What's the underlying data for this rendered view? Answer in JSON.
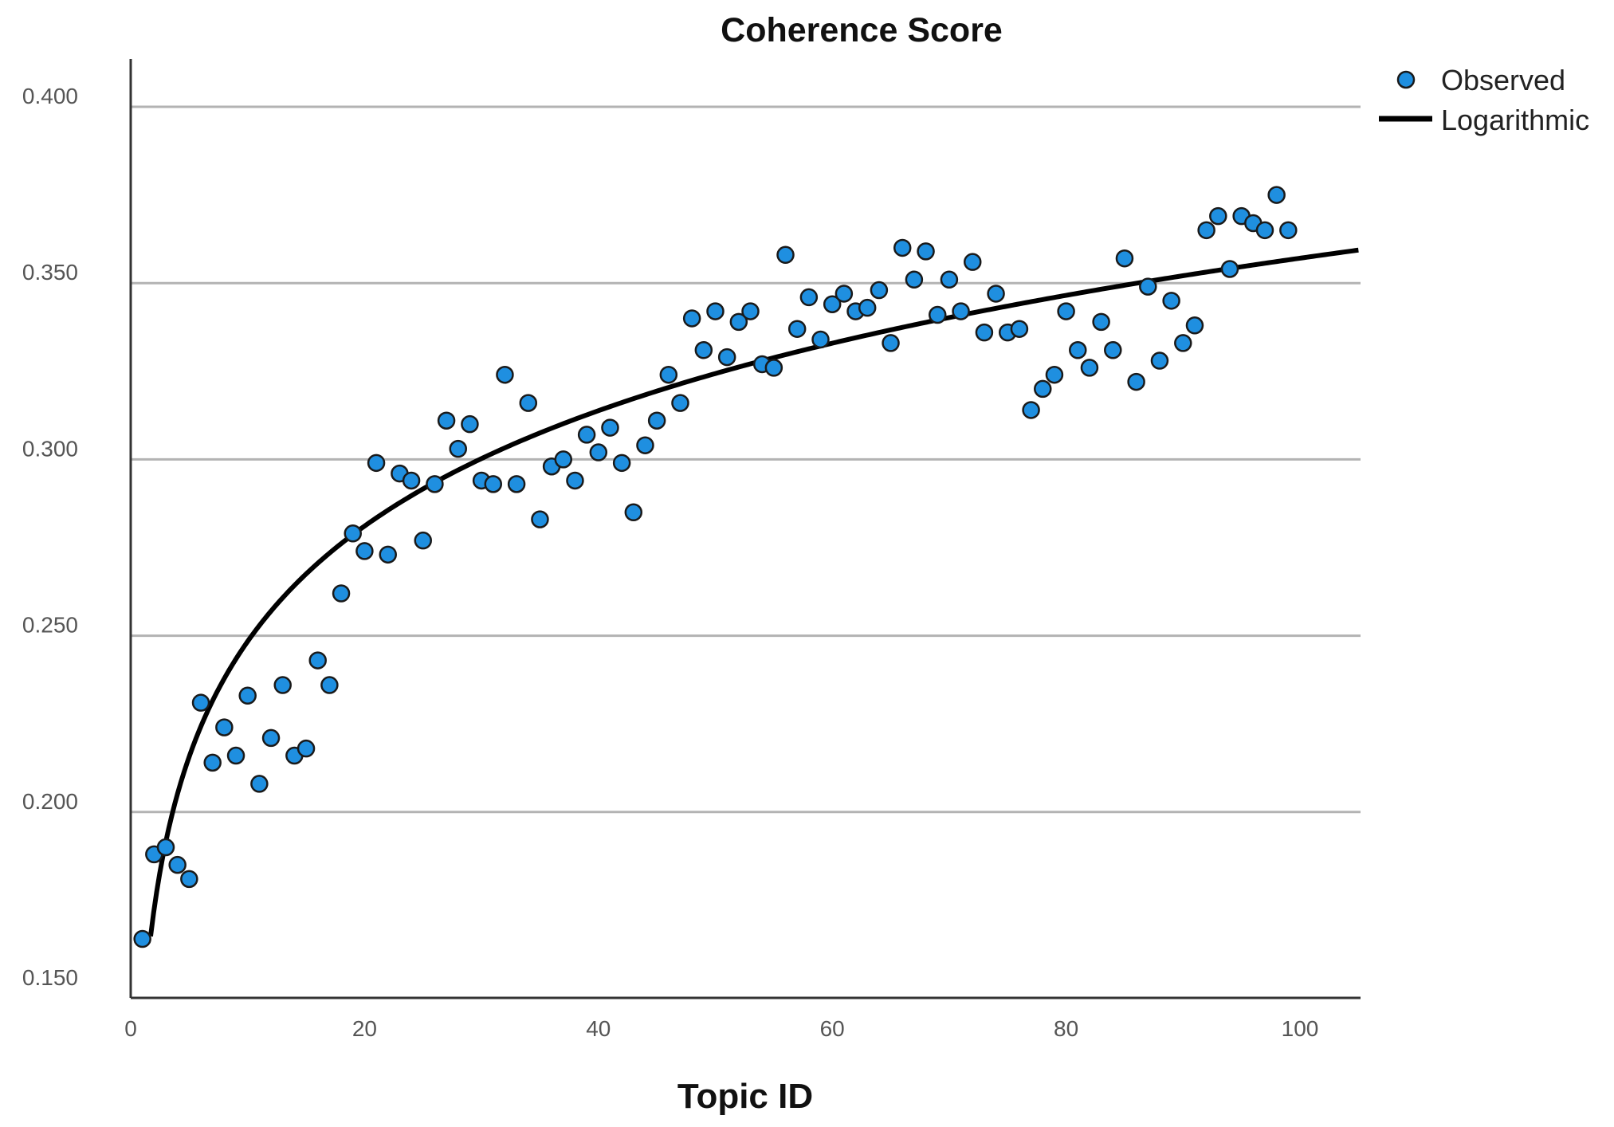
{
  "chart_data": {
    "type": "scatter",
    "title": "Coherence Score",
    "xlabel": "Topic ID",
    "ylabel": "",
    "xlim": [
      0,
      105
    ],
    "ylim": [
      0.15,
      0.405
    ],
    "x_ticks": [
      0,
      20,
      40,
      60,
      80,
      100
    ],
    "x_tick_labels": [
      "0",
      "20",
      "40",
      "60",
      "80",
      "100"
    ],
    "y_ticks": [
      0.15,
      0.2,
      0.25,
      0.3,
      0.35,
      0.4
    ],
    "y_tick_labels": [
      "0.150",
      "0.200",
      "0.250",
      "0.300",
      "0.350",
      "0.400"
    ],
    "grid": "horizontal",
    "legend_position": "top-right",
    "colors": {
      "observed_fill": "#1f8fe0",
      "observed_edge": "#1a1a1a",
      "fit_line": "#000000",
      "grid": "#b3b3b3"
    },
    "series": [
      {
        "name": "Observed",
        "kind": "scatter",
        "x": [
          1,
          2,
          3,
          4,
          5,
          6,
          7,
          8,
          9,
          10,
          11,
          12,
          13,
          14,
          15,
          16,
          17,
          18,
          19,
          20,
          21,
          22,
          23,
          24,
          25,
          26,
          27,
          28,
          29,
          30,
          31,
          32,
          33,
          34,
          35,
          36,
          37,
          38,
          39,
          40,
          41,
          42,
          43,
          44,
          45,
          46,
          47,
          48,
          49,
          50,
          51,
          52,
          53,
          54,
          55,
          56,
          57,
          58,
          59,
          60,
          61,
          62,
          63,
          64,
          65,
          66,
          67,
          68,
          69,
          70,
          71,
          72,
          73,
          74,
          75,
          76,
          77,
          78,
          79,
          80,
          81,
          82,
          83,
          84,
          85,
          86,
          87,
          88,
          89,
          90,
          91,
          92,
          93,
          94,
          95,
          96,
          97,
          98,
          99
        ],
        "y": [
          0.164,
          0.188,
          0.19,
          0.185,
          0.181,
          0.231,
          0.214,
          0.224,
          0.216,
          0.233,
          0.208,
          0.221,
          0.236,
          0.216,
          0.218,
          0.243,
          0.236,
          0.262,
          0.279,
          0.274,
          0.299,
          0.273,
          0.296,
          0.294,
          0.277,
          0.293,
          0.311,
          0.303,
          0.31,
          0.294,
          0.293,
          0.324,
          0.293,
          0.316,
          0.283,
          0.298,
          0.3,
          0.294,
          0.307,
          0.302,
          0.309,
          0.299,
          0.285,
          0.304,
          0.311,
          0.324,
          0.316,
          0.34,
          0.331,
          0.342,
          0.329,
          0.339,
          0.342,
          0.327,
          0.326,
          0.358,
          0.337,
          0.346,
          0.334,
          0.344,
          0.347,
          0.342,
          0.343,
          0.348,
          0.333,
          0.36,
          0.351,
          0.359,
          0.341,
          0.351,
          0.342,
          0.356,
          0.336,
          0.347,
          0.336,
          0.337,
          0.314,
          0.32,
          0.324,
          0.342,
          0.331,
          0.326,
          0.339,
          0.331,
          0.357,
          0.322,
          0.349,
          0.328,
          0.345,
          0.333,
          0.338,
          0.365,
          0.369,
          0.354,
          0.369,
          0.367,
          0.365,
          0.375,
          0.365
        ]
      },
      {
        "name": "Logarithmic",
        "kind": "line",
        "equation": "y = 0.1397 + 0.0472 * ln(x)",
        "a": 0.1397,
        "b": 0.0472,
        "x_range": [
          1.7,
          105
        ]
      }
    ]
  }
}
